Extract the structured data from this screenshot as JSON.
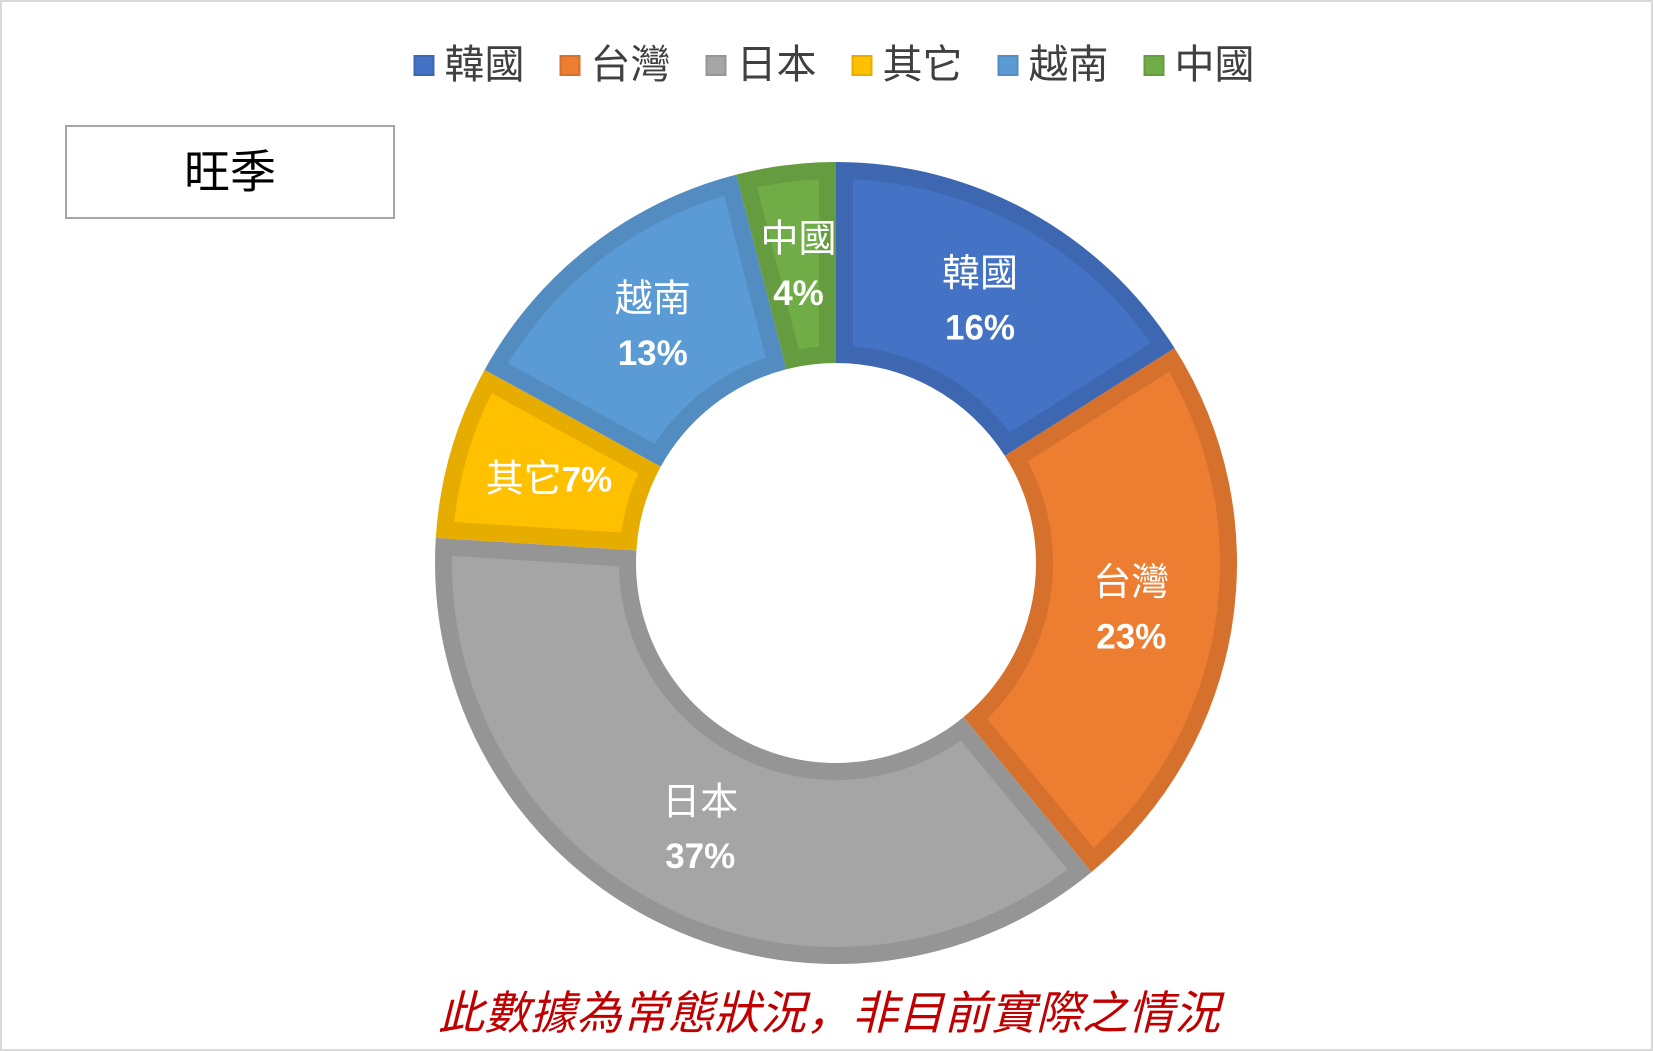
{
  "season_label": "旺季",
  "footnote": {
    "text": "此數據為常態狀況，非目前實際之情況",
    "color": "#C00000"
  },
  "chart_data": {
    "type": "pie",
    "donut": true,
    "legend_position": "top",
    "categories": [
      "韓國",
      "台灣",
      "日本",
      "其它",
      "越南",
      "中國"
    ],
    "values": [
      16,
      23,
      37,
      7,
      13,
      4
    ],
    "value_labels": [
      "16%",
      "23%",
      "37%",
      "7%",
      "13%",
      "4%"
    ],
    "colors": [
      "#4472C4",
      "#ED7D31",
      "#A5A5A5",
      "#FFC000",
      "#5B9BD5",
      "#70AD47"
    ]
  }
}
